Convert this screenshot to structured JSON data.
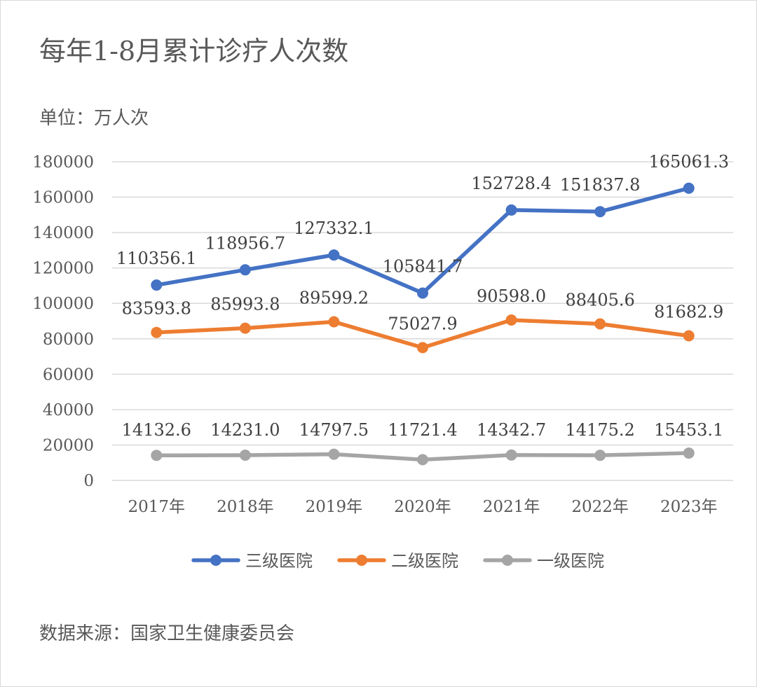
{
  "chart_data": {
    "type": "line",
    "title": "每年1-8月累计诊疗人次数",
    "unit_label": "单位：万人次",
    "source_label": "数据来源：国家卫生健康委员会",
    "categories": [
      "2017年",
      "2018年",
      "2019年",
      "2020年",
      "2021年",
      "2022年",
      "2023年"
    ],
    "ylim": [
      0,
      180000
    ],
    "yticks": [
      0,
      20000,
      40000,
      60000,
      80000,
      100000,
      120000,
      140000,
      160000,
      180000
    ],
    "grid": true,
    "legend_position": "bottom",
    "series": [
      {
        "name": "三级医院",
        "color": "#4472c4",
        "values": [
          110356.1,
          118956.7,
          127332.1,
          105841.7,
          152728.4,
          151837.8,
          165061.3
        ],
        "labels": [
          "110356.1",
          "118956.7",
          "127332.1",
          "105841.7",
          "152728.4",
          "151837.8",
          "165061.3"
        ]
      },
      {
        "name": "二级医院",
        "color": "#ed7d31",
        "values": [
          83593.8,
          85993.8,
          89599.2,
          75027.9,
          90598.0,
          88405.6,
          81682.9
        ],
        "labels": [
          "83593.8",
          "85993.8",
          "89599.2",
          "75027.9",
          "90598.0",
          "88405.6",
          "81682.9"
        ]
      },
      {
        "name": "一级医院",
        "color": "#a5a5a5",
        "values": [
          14132.6,
          14231.0,
          14797.5,
          11721.4,
          14342.7,
          14175.2,
          15453.1
        ],
        "labels": [
          "14132.6",
          "14231.0",
          "14797.5",
          "11721.4",
          "14342.7",
          "14175.2",
          "15453.1"
        ]
      }
    ]
  }
}
